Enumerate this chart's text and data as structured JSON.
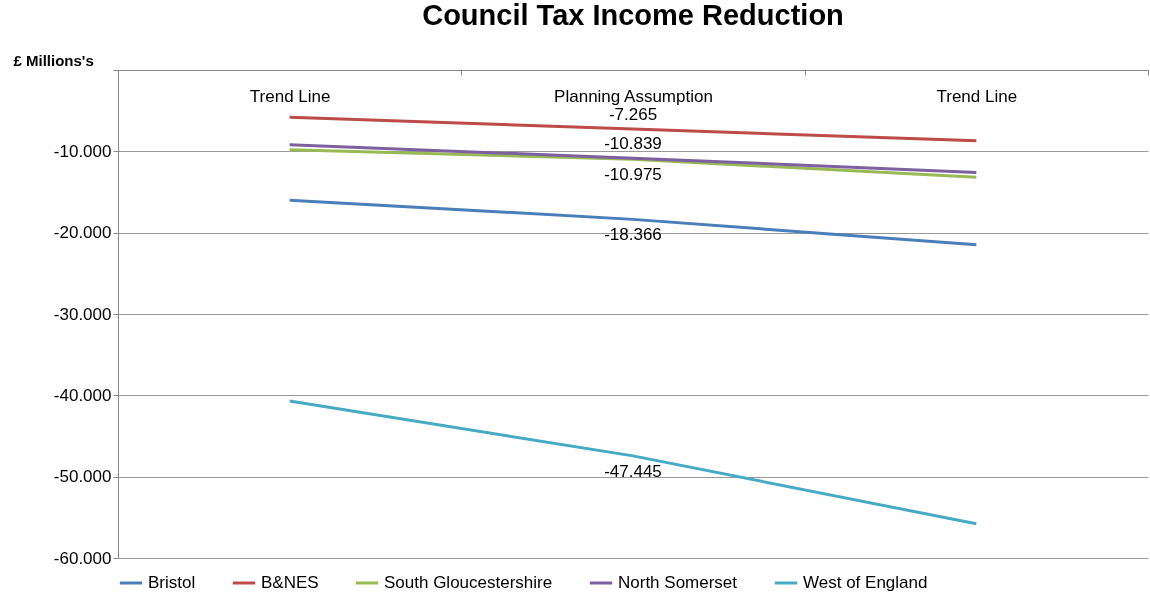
{
  "chart_data": {
    "type": "line",
    "title": "Council Tax  Income Reduction",
    "ylabel": "£ Millions's",
    "categories": [
      "Trend Line",
      "Planning Assumption",
      "Trend Line"
    ],
    "series": [
      {
        "name": "Bristol",
        "color": "#4a7ebb",
        "values": [
          -16.0,
          -18.366,
          -21.5
        ],
        "value_labels": [
          null,
          "-18.366",
          null
        ]
      },
      {
        "name": "B&NES",
        "color": "#be4b48",
        "values": [
          -5.8,
          -7.265,
          -8.7
        ],
        "value_labels": [
          null,
          "-7.265",
          null
        ]
      },
      {
        "name": "South Gloucestershire",
        "color": "#98b954",
        "values": [
          -9.8,
          -10.975,
          -13.2
        ],
        "value_labels": [
          null,
          "-10.975",
          null
        ]
      },
      {
        "name": "North Somerset",
        "color": "#7d60a0",
        "values": [
          -9.2,
          -10.839,
          -12.6
        ],
        "value_labels": [
          null,
          "-10.839",
          null
        ]
      },
      {
        "name": "West of England",
        "color": "#46aac5",
        "values": [
          -40.7,
          -47.445,
          -55.8
        ],
        "value_labels": [
          null,
          "-47.445",
          null
        ]
      }
    ],
    "ylim": [
      -60,
      0
    ],
    "yticks": [
      {
        "value": 0,
        "label": null
      },
      {
        "value": -10,
        "label": "-10.000"
      },
      {
        "value": -20,
        "label": "-20.000"
      },
      {
        "value": -30,
        "label": "-30.000"
      },
      {
        "value": -40,
        "label": "-40.000"
      },
      {
        "value": -50,
        "label": "-50.000"
      },
      {
        "value": -60,
        "label": "-60.000"
      }
    ],
    "grid": "y",
    "legend": "bottom",
    "marker": "none",
    "line_style": "solid"
  }
}
